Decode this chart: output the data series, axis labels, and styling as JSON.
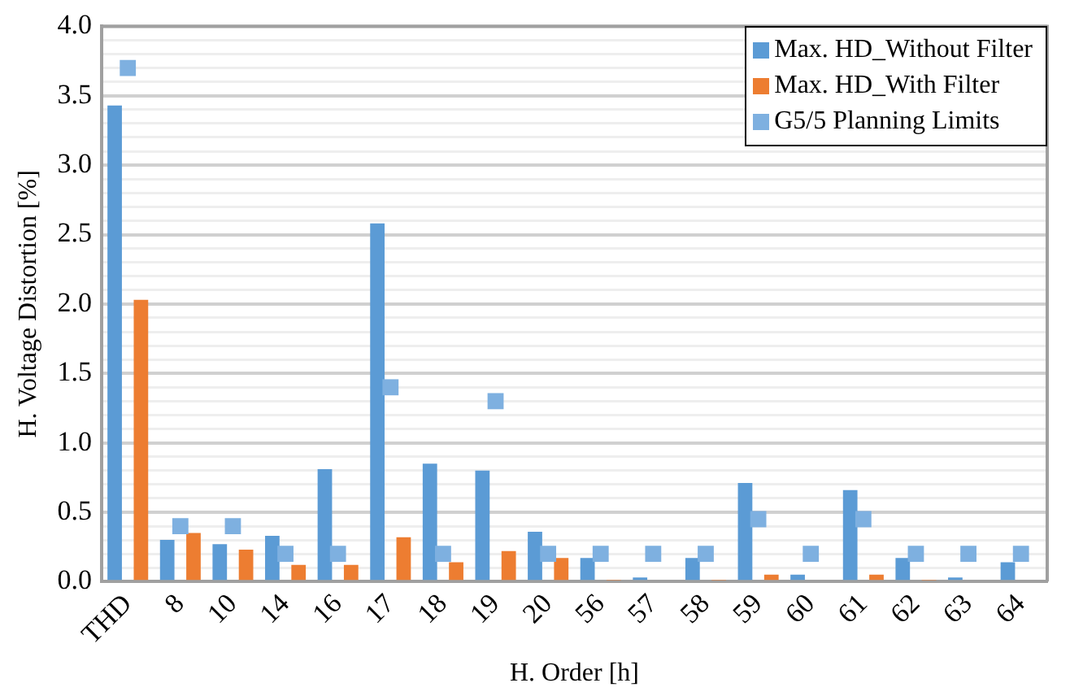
{
  "chart_data": {
    "type": "bar",
    "xlabel": "H. Order [h]",
    "ylabel": "H. Voltage Distortion [%]",
    "categories": [
      "THD",
      "8",
      "10",
      "14",
      "16",
      "17",
      "18",
      "19",
      "20",
      "56",
      "57",
      "58",
      "59",
      "60",
      "61",
      "62",
      "63",
      "64"
    ],
    "series": [
      {
        "name": "Max. HD_Without Filter",
        "color": "#5b9bd5",
        "values": [
          3.43,
          0.3,
          0.27,
          0.33,
          0.81,
          2.58,
          0.85,
          0.8,
          0.36,
          0.17,
          0.03,
          0.17,
          0.71,
          0.05,
          0.66,
          0.17,
          0.03,
          0.14
        ]
      },
      {
        "name": "Max. HD_With Filter",
        "color": "#ed7d31",
        "values": [
          2.03,
          0.35,
          0.23,
          0.12,
          0.12,
          0.32,
          0.14,
          0.22,
          0.17,
          0.01,
          0,
          0.01,
          0.05,
          0,
          0.05,
          0.01,
          0,
          0
        ]
      },
      {
        "name": "G5/5 Planning Limits",
        "type": "scatter",
        "marker": "square",
        "color": "#7eb0e0",
        "values": [
          3.7,
          0.4,
          0.4,
          0.2,
          0.2,
          1.4,
          0.2,
          1.3,
          0.2,
          0.2,
          0.2,
          0.2,
          0.45,
          0.2,
          0.45,
          0.2,
          0.2,
          0.2
        ]
      }
    ],
    "ylim": [
      0,
      4
    ],
    "yticks": [
      {
        "value": 0,
        "label": "0.0"
      },
      {
        "value": 0.1,
        "label": null
      },
      {
        "value": 0.2,
        "label": null
      },
      {
        "value": 0.3,
        "label": null
      },
      {
        "value": 0.4,
        "label": null
      },
      {
        "value": 0.5,
        "label": "0.5"
      },
      {
        "value": 0.6,
        "label": null
      },
      {
        "value": 0.7,
        "label": null
      },
      {
        "value": 0.8,
        "label": null
      },
      {
        "value": 0.9,
        "label": null
      },
      {
        "value": 1,
        "label": "1.0"
      },
      {
        "value": 1.1,
        "label": null
      },
      {
        "value": 1.2,
        "label": null
      },
      {
        "value": 1.3,
        "label": null
      },
      {
        "value": 1.4,
        "label": null
      },
      {
        "value": 1.5,
        "label": "1.5"
      },
      {
        "value": 1.6,
        "label": null
      },
      {
        "value": 1.7,
        "label": null
      },
      {
        "value": 1.8,
        "label": null
      },
      {
        "value": 1.9,
        "label": null
      },
      {
        "value": 2,
        "label": "2.0"
      },
      {
        "value": 2.1,
        "label": null
      },
      {
        "value": 2.2,
        "label": null
      },
      {
        "value": 2.3,
        "label": null
      },
      {
        "value": 2.4,
        "label": null
      },
      {
        "value": 2.5,
        "label": "2.5"
      },
      {
        "value": 2.6,
        "label": null
      },
      {
        "value": 2.7,
        "label": null
      },
      {
        "value": 2.8,
        "label": null
      },
      {
        "value": 2.9,
        "label": null
      },
      {
        "value": 3,
        "label": "3.0"
      },
      {
        "value": 3.1,
        "label": null
      },
      {
        "value": 3.2,
        "label": null
      },
      {
        "value": 3.3,
        "label": null
      },
      {
        "value": 3.4,
        "label": null
      },
      {
        "value": 3.5,
        "label": "3.5"
      },
      {
        "value": 3.6,
        "label": null
      },
      {
        "value": 3.7,
        "label": null
      },
      {
        "value": 3.8,
        "label": null
      },
      {
        "value": 3.9,
        "label": null
      },
      {
        "value": 4,
        "label": "4.0"
      }
    ],
    "grid": "y",
    "legend": "top right"
  }
}
